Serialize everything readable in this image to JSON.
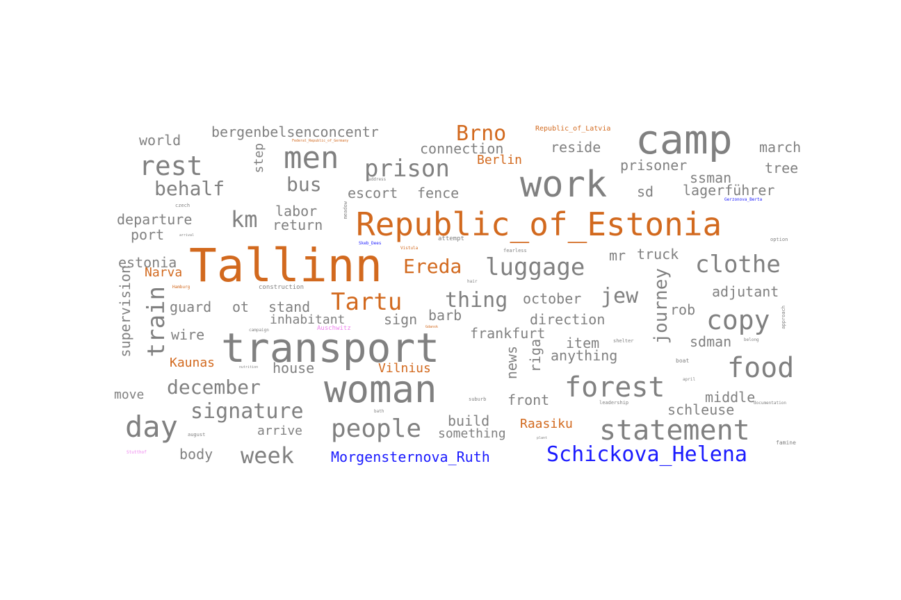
{
  "colors": {
    "default": "#808080",
    "place": "#d2691e",
    "person": "#1a1aff",
    "camp": "#ee82ee"
  },
  "words": [
    {
      "text": "Tallinn",
      "color": "place"
    },
    {
      "text": "Republic_of_Estonia",
      "color": "place"
    },
    {
      "text": "transport",
      "color": "default"
    },
    {
      "text": "camp",
      "color": "default"
    },
    {
      "text": "woman",
      "color": "default"
    },
    {
      "text": "work",
      "color": "default"
    },
    {
      "text": "men",
      "color": "default"
    },
    {
      "text": "rest",
      "color": "default"
    },
    {
      "text": "prison",
      "color": "default"
    },
    {
      "text": "statement",
      "color": "default"
    },
    {
      "text": "forest",
      "color": "default"
    },
    {
      "text": "food",
      "color": "default"
    },
    {
      "text": "day",
      "color": "default"
    },
    {
      "text": "people",
      "color": "default"
    },
    {
      "text": "luggage",
      "color": "default"
    },
    {
      "text": "clothe",
      "color": "default"
    },
    {
      "text": "copy",
      "color": "default"
    },
    {
      "text": "Tartu",
      "color": "place"
    },
    {
      "text": "Ereda",
      "color": "place"
    },
    {
      "text": "Brno",
      "color": "place"
    },
    {
      "text": "Schickova_Helena",
      "color": "person"
    },
    {
      "text": "Morgensternova_Ruth",
      "color": "person"
    },
    {
      "text": "train",
      "color": "default"
    },
    {
      "text": "signature",
      "color": "default"
    },
    {
      "text": "december",
      "color": "default"
    },
    {
      "text": "week",
      "color": "default"
    },
    {
      "text": "behalf",
      "color": "default"
    },
    {
      "text": "km",
      "color": "default"
    },
    {
      "text": "bus",
      "color": "default"
    },
    {
      "text": "thing",
      "color": "default"
    },
    {
      "text": "jew",
      "color": "default"
    },
    {
      "text": "journey",
      "color": "default"
    },
    {
      "text": "Berlin",
      "color": "place"
    },
    {
      "text": "Narva",
      "color": "place"
    },
    {
      "text": "Kaunas",
      "color": "place"
    },
    {
      "text": "Vilnius",
      "color": "place"
    },
    {
      "text": "Raasiku",
      "color": "place"
    },
    {
      "text": "bergenbelsenconcentr",
      "color": "default"
    },
    {
      "text": "connection",
      "color": "default"
    },
    {
      "text": "reside",
      "color": "default"
    },
    {
      "text": "prisoner",
      "color": "default"
    },
    {
      "text": "march",
      "color": "default"
    },
    {
      "text": "tree",
      "color": "default"
    },
    {
      "text": "ssman",
      "color": "default"
    },
    {
      "text": "sd",
      "color": "default"
    },
    {
      "text": "lagerführer",
      "color": "default"
    },
    {
      "text": "world",
      "color": "default"
    },
    {
      "text": "step",
      "color": "default"
    },
    {
      "text": "escort",
      "color": "default"
    },
    {
      "text": "fence",
      "color": "default"
    },
    {
      "text": "departure",
      "color": "default"
    },
    {
      "text": "labor",
      "color": "default"
    },
    {
      "text": "return",
      "color": "default"
    },
    {
      "text": "port",
      "color": "default"
    },
    {
      "text": "estonia",
      "color": "default"
    },
    {
      "text": "mr",
      "color": "default"
    },
    {
      "text": "truck",
      "color": "default"
    },
    {
      "text": "adjutant",
      "color": "default"
    },
    {
      "text": "october",
      "color": "default"
    },
    {
      "text": "rob",
      "color": "default"
    },
    {
      "text": "guard",
      "color": "default"
    },
    {
      "text": "ot",
      "color": "default"
    },
    {
      "text": "stand",
      "color": "default"
    },
    {
      "text": "barb",
      "color": "default"
    },
    {
      "text": "inhabitant",
      "color": "default"
    },
    {
      "text": "sign",
      "color": "default"
    },
    {
      "text": "direction",
      "color": "default"
    },
    {
      "text": "supervision",
      "color": "default"
    },
    {
      "text": "wire",
      "color": "default"
    },
    {
      "text": "frankfurt",
      "color": "default"
    },
    {
      "text": "item",
      "color": "default"
    },
    {
      "text": "sdman",
      "color": "default"
    },
    {
      "text": "riga",
      "color": "default"
    },
    {
      "text": "news",
      "color": "default"
    },
    {
      "text": "anything",
      "color": "default"
    },
    {
      "text": "house",
      "color": "default"
    },
    {
      "text": "move",
      "color": "default"
    },
    {
      "text": "front",
      "color": "default"
    },
    {
      "text": "middle",
      "color": "default"
    },
    {
      "text": "schleuse",
      "color": "default"
    },
    {
      "text": "build",
      "color": "default"
    },
    {
      "text": "something",
      "color": "default"
    },
    {
      "text": "arrive",
      "color": "default"
    },
    {
      "text": "body",
      "color": "default"
    },
    {
      "text": "Republic_of_Latvia",
      "color": "place"
    },
    {
      "text": "Federal_Republic_of_Germany",
      "color": "place"
    },
    {
      "text": "Gerzonova_Berta",
      "color": "person"
    },
    {
      "text": "Skeb_Dees",
      "color": "person"
    },
    {
      "text": "Auschwitz",
      "color": "camp"
    },
    {
      "text": "Stutthof",
      "color": "camp"
    },
    {
      "text": "Hamburg",
      "color": "place"
    },
    {
      "text": "Gdansk",
      "color": "place"
    },
    {
      "text": "Vistula",
      "color": "place"
    },
    {
      "text": "czech",
      "color": "default"
    },
    {
      "text": "arrival",
      "color": "default"
    },
    {
      "text": "attempt",
      "color": "default"
    },
    {
      "text": "fearless",
      "color": "default"
    },
    {
      "text": "option",
      "color": "default"
    },
    {
      "text": "construction",
      "color": "default"
    },
    {
      "text": "hair",
      "color": "default"
    },
    {
      "text": "campaign",
      "color": "default"
    },
    {
      "text": "shelter",
      "color": "default"
    },
    {
      "text": "belong",
      "color": "default"
    },
    {
      "text": "approach",
      "color": "default"
    },
    {
      "text": "boat",
      "color": "default"
    },
    {
      "text": "april",
      "color": "default"
    },
    {
      "text": "suburb",
      "color": "default"
    },
    {
      "text": "leadership",
      "color": "default"
    },
    {
      "text": "documentation",
      "color": "default"
    },
    {
      "text": "bath",
      "color": "default"
    },
    {
      "text": "august",
      "color": "default"
    },
    {
      "text": "plant",
      "color": "default"
    },
    {
      "text": "famine",
      "color": "default"
    },
    {
      "text": "meadow",
      "color": "default"
    },
    {
      "text": "address",
      "color": "default"
    },
    {
      "text": "nutrition",
      "color": "default"
    }
  ]
}
